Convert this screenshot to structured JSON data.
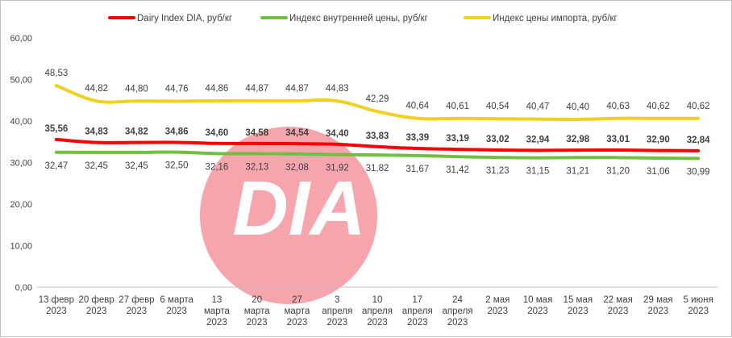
{
  "chart_data": {
    "type": "line",
    "categories": [
      [
        "13 февр",
        "2023"
      ],
      [
        "20 февр",
        "2023"
      ],
      [
        "27 февр",
        "2023"
      ],
      [
        "6 марта",
        "2023"
      ],
      [
        "13",
        "марта",
        "2023"
      ],
      [
        "20",
        "марта",
        "2023"
      ],
      [
        "27",
        "марта",
        "2023"
      ],
      [
        "3",
        "апреля",
        "2023"
      ],
      [
        "10",
        "апреля",
        "2023"
      ],
      [
        "17",
        "апреля",
        "2023"
      ],
      [
        "24",
        "апреля",
        "2023"
      ],
      [
        "2 мая",
        "2023"
      ],
      [
        "10 мая",
        "2023"
      ],
      [
        "15 мая",
        "2023"
      ],
      [
        "22 мая",
        "2023"
      ],
      [
        "29 мая",
        "2023"
      ],
      [
        "5 июня",
        "2023"
      ]
    ],
    "series": [
      {
        "name": "Dairy Index DIA,  руб/кг",
        "color": "#ff0000",
        "values": [
          35.56,
          34.83,
          34.82,
          34.86,
          34.6,
          34.58,
          34.54,
          34.4,
          33.83,
          33.39,
          33.19,
          33.02,
          32.94,
          32.98,
          33.01,
          32.9,
          32.84
        ],
        "labels": [
          "35,56",
          "34,83",
          "34,82",
          "34,86",
          "34,60",
          "34,58",
          "34,54",
          "34,40",
          "33,83",
          "33,39",
          "33,19",
          "33,02",
          "32,94",
          "32,98",
          "33,01",
          "32,90",
          "32,84"
        ]
      },
      {
        "name": "Индекс внутренней цены, руб/кг",
        "color": "#70c040",
        "values": [
          32.47,
          32.45,
          32.45,
          32.5,
          32.16,
          32.13,
          32.08,
          31.92,
          31.82,
          31.67,
          31.42,
          31.23,
          31.15,
          31.21,
          31.2,
          31.06,
          30.99
        ],
        "labels": [
          "32,47",
          "32,45",
          "32,45",
          "32,50",
          "32,16",
          "32,13",
          "32,08",
          "31,92",
          "31,82",
          "31,67",
          "31,42",
          "31,23",
          "31,15",
          "31,21",
          "31,20",
          "31,06",
          "30,99"
        ]
      },
      {
        "name": "Индекс цены импорта, руб/кг",
        "color": "#f0d020",
        "values": [
          48.53,
          44.82,
          44.8,
          44.76,
          44.86,
          44.87,
          44.87,
          44.83,
          42.29,
          40.64,
          40.61,
          40.54,
          40.47,
          40.4,
          40.63,
          40.62,
          40.62
        ],
        "labels": [
          "48,53",
          "44,82",
          "44,80",
          "44,76",
          "44,86",
          "44,87",
          "44,87",
          "44,83",
          "42,29",
          "40,64",
          "40,61",
          "40,54",
          "40,47",
          "40,40",
          "40,63",
          "40,62",
          "40,62"
        ]
      }
    ],
    "ylim": [
      0,
      60
    ],
    "yticks": [
      0,
      10,
      20,
      30,
      40,
      50,
      60
    ],
    "ytick_labels": [
      "0,00",
      "10,00",
      "20,00",
      "30,00",
      "40,00",
      "50,00",
      "60,00"
    ],
    "grid": false,
    "legend_position": "top",
    "watermark": {
      "text": "DIA",
      "circle_color": "#f4a0a6"
    }
  }
}
